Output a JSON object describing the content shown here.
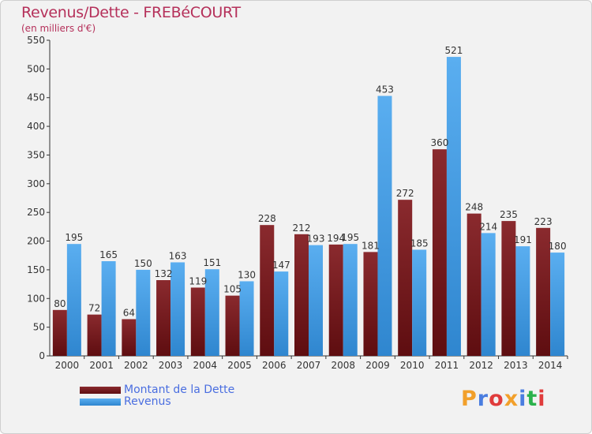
{
  "chart_data": {
    "type": "bar",
    "title": "Revenus/Dette - FREBéCOURT",
    "subtitle": "(en milliers d'€)",
    "categories": [
      "2000",
      "2001",
      "2002",
      "2003",
      "2004",
      "2005",
      "2006",
      "2007",
      "2008",
      "2009",
      "2010",
      "2011",
      "2012",
      "2013",
      "2014"
    ],
    "series": [
      {
        "name": "Montant de la Dette",
        "values": [
          80,
          72,
          64,
          132,
          119,
          105,
          228,
          212,
          194,
          181,
          272,
          360,
          248,
          235,
          223
        ],
        "labels": [
          "80",
          "72",
          "64",
          "132",
          "119",
          "105",
          "228",
          "212",
          "194",
          "181",
          "272",
          "360",
          "248",
          "235",
          "223"
        ],
        "color": "#7a1a1e"
      },
      {
        "name": "Revenus",
        "values": [
          195,
          165,
          150,
          163,
          151,
          130,
          147,
          193,
          195,
          453,
          185,
          521,
          214,
          191,
          180
        ],
        "labels": [
          "195",
          "165",
          "150",
          "163",
          "151",
          "130",
          "147",
          "193",
          "195",
          "453",
          "185",
          "521",
          "214",
          "191",
          "180"
        ],
        "color": "#4a9fe8"
      }
    ],
    "yticks": [
      "0",
      "50",
      "100",
      "150",
      "200",
      "250",
      "300",
      "350",
      "400",
      "450",
      "500",
      "550"
    ],
    "ylim": [
      0,
      550
    ],
    "grid": false,
    "legend": "bottom-left"
  },
  "logo": {
    "text": "Proxiti",
    "colors": [
      "#f2a02b",
      "#4a7de0",
      "#e03c3c",
      "#f2a02b",
      "#4a7de0",
      "#2bb24c",
      "#e03c3c"
    ]
  }
}
